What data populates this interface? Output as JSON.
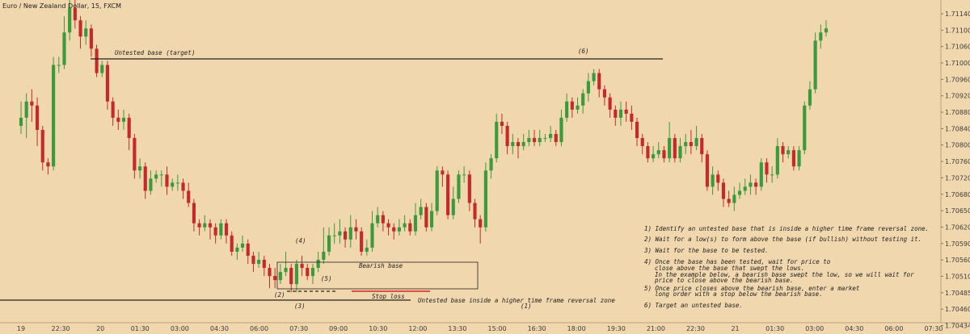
{
  "chart_data": {
    "type": "candlestick",
    "title": "Euro / New Zealand Dollar, 15, FXCM",
    "colors": {
      "background": "#f0d7ae",
      "up": "#3b9a3b",
      "down": "#c42a2a",
      "line": "#222222",
      "stop": "#d82020",
      "axis_text": "#3d3d3d"
    },
    "ylim": [
      1.70425,
      1.7122
    ],
    "y_ticks": [
      "1.71140",
      "1.71100",
      "1.71060",
      "1.71000",
      "1.70960",
      "1.70920",
      "1.70880",
      "1.70840",
      "1.70800",
      "1.70760",
      "1.70720",
      "1.70680",
      "1.70650",
      "1.70620",
      "1.70590",
      "1.70560",
      "1.70510",
      "1.70485",
      "1.70460",
      "1.70434"
    ],
    "x_ticks": [
      "19",
      "22:30",
      "20",
      "01:30",
      "03:00",
      "04:30",
      "06:00",
      "07:30",
      "09:00",
      "10:30",
      "12:00",
      "13:30",
      "15:00",
      "16:30",
      "18:00",
      "19:30",
      "21:00",
      "22:30",
      "21",
      "01:30",
      "03:00",
      "04:30",
      "06:00",
      "07:30"
    ],
    "candles": [
      [
        1.7091,
        1.7093,
        1.7097,
        1.7089
      ],
      [
        1.7093,
        1.7097,
        1.7099,
        1.7088
      ],
      [
        1.7097,
        1.7096,
        1.71,
        1.7092
      ],
      [
        1.7096,
        1.709,
        1.7098,
        1.7086
      ],
      [
        1.709,
        1.7082,
        1.7091,
        1.708
      ],
      [
        1.7082,
        1.7081,
        1.7083,
        1.7079
      ],
      [
        1.7081,
        1.7106,
        1.7108,
        1.708
      ],
      [
        1.7106,
        1.7106,
        1.7108,
        1.7104
      ],
      [
        1.7106,
        1.7114,
        1.7118,
        1.7105
      ],
      [
        1.7114,
        1.712,
        1.7123,
        1.7112
      ],
      [
        1.712,
        1.7117,
        1.7122,
        1.7115
      ],
      [
        1.7117,
        1.7113,
        1.7118,
        1.711
      ],
      [
        1.7113,
        1.7115,
        1.7117,
        1.7111
      ],
      [
        1.7115,
        1.711,
        1.7116,
        1.7108
      ],
      [
        1.711,
        1.7104,
        1.7111,
        1.7103
      ],
      [
        1.7104,
        1.7106,
        1.7107,
        1.7103
      ],
      [
        1.7106,
        1.7097,
        1.7107,
        1.7095
      ],
      [
        1.7097,
        1.7093,
        1.7098,
        1.7091
      ],
      [
        1.7093,
        1.7092,
        1.7095,
        1.709
      ],
      [
        1.7092,
        1.7093,
        1.7095,
        1.709
      ],
      [
        1.7093,
        1.7088,
        1.7094,
        1.7085
      ],
      [
        1.7088,
        1.708,
        1.7089,
        1.7078
      ],
      [
        1.708,
        1.7081,
        1.7083,
        1.7078
      ],
      [
        1.7081,
        1.7075,
        1.7082,
        1.7073
      ],
      [
        1.7075,
        1.7078,
        1.708,
        1.7074
      ],
      [
        1.7078,
        1.7079,
        1.708,
        1.7077
      ],
      [
        1.7079,
        1.7079,
        1.708,
        1.7076
      ],
      [
        1.7079,
        1.7076,
        1.7081,
        1.7074
      ],
      [
        1.7076,
        1.7077,
        1.7078,
        1.7075
      ],
      [
        1.7077,
        1.7077,
        1.7079,
        1.7075
      ],
      [
        1.7077,
        1.7075,
        1.7078,
        1.7073
      ],
      [
        1.7075,
        1.7072,
        1.7077,
        1.7071
      ],
      [
        1.7072,
        1.7067,
        1.7073,
        1.7065
      ],
      [
        1.7067,
        1.7066,
        1.7068,
        1.7064
      ],
      [
        1.7066,
        1.7067,
        1.7069,
        1.7065
      ],
      [
        1.7067,
        1.7066,
        1.7068,
        1.7063
      ],
      [
        1.7066,
        1.7064,
        1.7067,
        1.7062
      ],
      [
        1.7064,
        1.7067,
        1.7068,
        1.7063
      ],
      [
        1.7067,
        1.7064,
        1.7068,
        1.7062
      ],
      [
        1.7064,
        1.706,
        1.7065,
        1.7059
      ],
      [
        1.706,
        1.7061,
        1.7062,
        1.7058
      ],
      [
        1.7061,
        1.7062,
        1.7064,
        1.706
      ],
      [
        1.7062,
        1.7059,
        1.7063,
        1.7057
      ],
      [
        1.7059,
        1.7057,
        1.706,
        1.7055
      ],
      [
        1.7057,
        1.7058,
        1.706,
        1.7056
      ],
      [
        1.7058,
        1.7056,
        1.7059,
        1.7054
      ],
      [
        1.7056,
        1.7054,
        1.7057,
        1.7051
      ],
      [
        1.7054,
        1.7053,
        1.7056,
        1.7051
      ],
      [
        1.7053,
        1.7055,
        1.7057,
        1.7052
      ],
      [
        1.7055,
        1.7056,
        1.706,
        1.7054
      ],
      [
        1.7056,
        1.7052,
        1.7057,
        1.705
      ],
      [
        1.7052,
        1.7057,
        1.7058,
        1.705
      ],
      [
        1.7057,
        1.7056,
        1.7059,
        1.7054
      ],
      [
        1.7056,
        1.7054,
        1.7057,
        1.7053
      ],
      [
        1.7054,
        1.7056,
        1.7057,
        1.7052
      ],
      [
        1.7056,
        1.7058,
        1.706,
        1.7055
      ],
      [
        1.7058,
        1.706,
        1.7066,
        1.7057
      ],
      [
        1.706,
        1.7064,
        1.7066,
        1.7059
      ],
      [
        1.7064,
        1.7064,
        1.7067,
        1.7062
      ],
      [
        1.7064,
        1.7065,
        1.7068,
        1.7062
      ],
      [
        1.7065,
        1.7063,
        1.7066,
        1.7061
      ],
      [
        1.7063,
        1.7066,
        1.7069,
        1.7061
      ],
      [
        1.7066,
        1.7065,
        1.7068,
        1.7063
      ],
      [
        1.7065,
        1.706,
        1.7066,
        1.7059
      ],
      [
        1.706,
        1.7061,
        1.7063,
        1.7059
      ],
      [
        1.7061,
        1.7067,
        1.707,
        1.706
      ],
      [
        1.7067,
        1.7069,
        1.7071,
        1.7066
      ],
      [
        1.7069,
        1.7067,
        1.707,
        1.7065
      ],
      [
        1.7067,
        1.7066,
        1.7068,
        1.7064
      ],
      [
        1.7066,
        1.7065,
        1.7067,
        1.7063
      ],
      [
        1.7065,
        1.7066,
        1.7068,
        1.7064
      ],
      [
        1.7066,
        1.7067,
        1.7069,
        1.7065
      ],
      [
        1.7067,
        1.7065,
        1.7068,
        1.7064
      ],
      [
        1.7065,
        1.7069,
        1.7072,
        1.7064
      ],
      [
        1.7069,
        1.7071,
        1.7073,
        1.7068
      ],
      [
        1.7071,
        1.7066,
        1.7072,
        1.7065
      ],
      [
        1.7066,
        1.707,
        1.7072,
        1.7065
      ],
      [
        1.707,
        1.708,
        1.7081,
        1.7069
      ],
      [
        1.708,
        1.7079,
        1.7081,
        1.7076
      ],
      [
        1.7079,
        1.7069,
        1.708,
        1.7068
      ],
      [
        1.7069,
        1.7073,
        1.7076,
        1.7068
      ],
      [
        1.7073,
        1.7079,
        1.708,
        1.7072
      ],
      [
        1.7079,
        1.7079,
        1.7081,
        1.7077
      ],
      [
        1.7079,
        1.7072,
        1.708,
        1.707
      ],
      [
        1.7072,
        1.7068,
        1.7073,
        1.7066
      ],
      [
        1.7068,
        1.7066,
        1.7069,
        1.7062
      ],
      [
        1.7066,
        1.708,
        1.7082,
        1.7065
      ],
      [
        1.708,
        1.7083,
        1.7084,
        1.7078
      ],
      [
        1.7083,
        1.7092,
        1.7094,
        1.7082
      ],
      [
        1.7092,
        1.7091,
        1.7094,
        1.7089
      ],
      [
        1.7091,
        1.7086,
        1.7092,
        1.7084
      ],
      [
        1.7086,
        1.7087,
        1.7089,
        1.7084
      ],
      [
        1.7087,
        1.7086,
        1.7088,
        1.7083
      ],
      [
        1.7086,
        1.7087,
        1.7089,
        1.7085
      ],
      [
        1.7087,
        1.7088,
        1.709,
        1.7086
      ],
      [
        1.7088,
        1.7087,
        1.709,
        1.7086
      ],
      [
        1.7087,
        1.7088,
        1.709,
        1.7086
      ],
      [
        1.7088,
        1.7088,
        1.7089,
        1.7087
      ],
      [
        1.7088,
        1.7089,
        1.7091,
        1.7087
      ],
      [
        1.7089,
        1.7087,
        1.709,
        1.7086
      ],
      [
        1.7087,
        1.7093,
        1.7095,
        1.7086
      ],
      [
        1.7093,
        1.7097,
        1.7099,
        1.7092
      ],
      [
        1.7097,
        1.7095,
        1.7098,
        1.7093
      ],
      [
        1.7095,
        1.7096,
        1.7098,
        1.7094
      ],
      [
        1.7096,
        1.7099,
        1.71,
        1.7094
      ],
      [
        1.7099,
        1.7102,
        1.7104,
        1.7097
      ],
      [
        1.7102,
        1.7104,
        1.7105,
        1.7101
      ],
      [
        1.7104,
        1.71,
        1.7105,
        1.7098
      ],
      [
        1.71,
        1.7098,
        1.7101,
        1.7096
      ],
      [
        1.7098,
        1.7095,
        1.7099,
        1.7093
      ],
      [
        1.7095,
        1.7093,
        1.7096,
        1.7091
      ],
      [
        1.7093,
        1.7095,
        1.7097,
        1.7091
      ],
      [
        1.7095,
        1.7094,
        1.7097,
        1.7092
      ],
      [
        1.7094,
        1.7092,
        1.7096,
        1.709
      ],
      [
        1.7092,
        1.7088,
        1.7093,
        1.7086
      ],
      [
        1.7088,
        1.7086,
        1.7089,
        1.7084
      ],
      [
        1.7086,
        1.7083,
        1.7087,
        1.7082
      ],
      [
        1.7083,
        1.7084,
        1.7086,
        1.7082
      ],
      [
        1.7084,
        1.7085,
        1.7087,
        1.7083
      ],
      [
        1.7085,
        1.7083,
        1.7086,
        1.7082
      ],
      [
        1.7083,
        1.7088,
        1.7092,
        1.7082
      ],
      [
        1.7088,
        1.7083,
        1.7089,
        1.7082
      ],
      [
        1.7083,
        1.7086,
        1.7088,
        1.7082
      ],
      [
        1.7086,
        1.7087,
        1.7089,
        1.7084
      ],
      [
        1.7087,
        1.7086,
        1.709,
        1.7084
      ],
      [
        1.7086,
        1.7088,
        1.7091,
        1.7085
      ],
      [
        1.7088,
        1.7084,
        1.7089,
        1.7082
      ],
      [
        1.7084,
        1.7076,
        1.7085,
        1.7075
      ],
      [
        1.7076,
        1.7079,
        1.7081,
        1.7074
      ],
      [
        1.7079,
        1.7077,
        1.708,
        1.7075
      ],
      [
        1.7077,
        1.7073,
        1.7078,
        1.7071
      ],
      [
        1.7073,
        1.7072,
        1.7075,
        1.7071
      ],
      [
        1.7072,
        1.7074,
        1.7076,
        1.707
      ],
      [
        1.7074,
        1.7075,
        1.7077,
        1.7073
      ],
      [
        1.7075,
        1.7076,
        1.7078,
        1.7074
      ],
      [
        1.7076,
        1.7077,
        1.7079,
        1.7074
      ],
      [
        1.7077,
        1.7076,
        1.7078,
        1.7074
      ],
      [
        1.7076,
        1.7082,
        1.7083,
        1.7075
      ],
      [
        1.7082,
        1.7079,
        1.7083,
        1.7077
      ],
      [
        1.7079,
        1.7079,
        1.7081,
        1.7077
      ],
      [
        1.7079,
        1.7086,
        1.7088,
        1.7078
      ],
      [
        1.7086,
        1.7084,
        1.7087,
        1.7082
      ],
      [
        1.7084,
        1.7085,
        1.7086,
        1.7083
      ],
      [
        1.7085,
        1.7081,
        1.7086,
        1.708
      ],
      [
        1.7081,
        1.7085,
        1.7086,
        1.708
      ],
      [
        1.7085,
        1.7096,
        1.7097,
        1.7084
      ],
      [
        1.7096,
        1.71,
        1.7102,
        1.7095
      ],
      [
        1.71,
        1.7112,
        1.7114,
        1.7099
      ],
      [
        1.7112,
        1.7114,
        1.7116,
        1.711
      ],
      [
        1.7114,
        1.7115,
        1.7117,
        1.7113
      ]
    ],
    "annotations": {
      "target_label": "Untested base (target)",
      "htf_label": "Untested base inside a higher time frame reversal zone",
      "bearish_base_label": "Bearish base",
      "stop_loss_label": "Stop loss",
      "steps": [
        "1) Identify an untested base that is inside a higher time frame reversal zone.",
        "2) Wait for a low(s) to form above the base (if bullish) without testing it.",
        "3) Wait for the base to be tested.",
        "4) Once the base has been tested, wait for price to",
        "close above the base that swept the lows.",
        "In the example below, a bearish base swept the low, so we will wait for",
        "price to close above the bearish base.",
        "5) Once price closes above the bearish base, enter a market",
        "long order with a stop below the bearish base.",
        "6) Target an untested base."
      ],
      "markers": [
        "(1)",
        "(2)",
        "(3)",
        "(4)",
        "(5)",
        "(6)"
      ]
    }
  }
}
